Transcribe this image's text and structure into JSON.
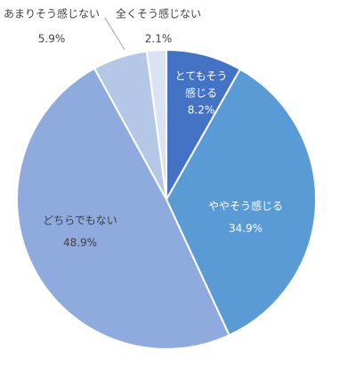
{
  "chart_data": {
    "type": "pie",
    "start_angle": "12 o'clock",
    "direction": "clockwise",
    "slices": [
      {
        "label_lines": [
          "とてもそう",
          "感じる"
        ],
        "value": 8.2,
        "value_text": "8.2%",
        "color": "#4472c4",
        "text_color": "#ffffff"
      },
      {
        "label_lines": [
          "ややそう感じる"
        ],
        "value": 34.9,
        "value_text": "34.9%",
        "color": "#5b9bd5",
        "text_color": "#ffffff"
      },
      {
        "label_lines": [
          "どちらでもない"
        ],
        "value": 48.9,
        "value_text": "48.9%",
        "color": "#8faadc",
        "text_color": "#404040"
      },
      {
        "label_lines": [
          "あまりそう感じない"
        ],
        "value": 5.9,
        "value_text": "5.9%",
        "color": "#b4c7e7",
        "text_color": "#404040"
      },
      {
        "label_lines": [
          "全くそう感じない"
        ],
        "value": 2.1,
        "value_text": "2.1%",
        "color": "#dae3f3",
        "text_color": "#404040"
      }
    ],
    "leader_line_color": "#a6a6a6"
  }
}
